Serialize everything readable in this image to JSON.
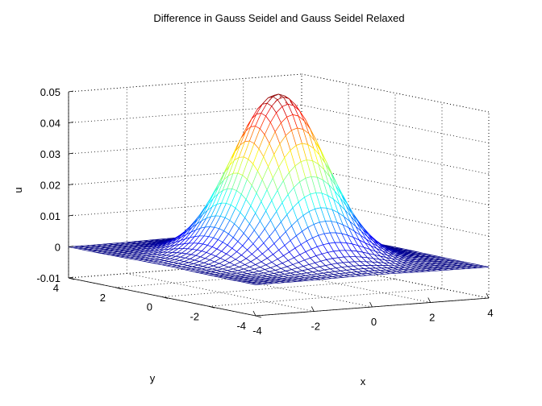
{
  "chart_data": {
    "type": "surface",
    "title": "Difference in Gauss Seidel and Gauss Seidel Relaxed",
    "xlabel": "x",
    "ylabel": "y",
    "zlabel": "u",
    "xlim": [
      -4,
      4
    ],
    "ylim": [
      -4,
      4
    ],
    "zlim": [
      -0.01,
      0.05
    ],
    "x_ticks": [
      "-4",
      "-2",
      "0",
      "2",
      "4"
    ],
    "y_ticks": [
      "-4",
      "-2",
      "0",
      "2",
      "4"
    ],
    "z_ticks": [
      "-0.01",
      "0",
      "0.01",
      "0.02",
      "0.03",
      "0.04",
      "0.05"
    ],
    "grid": true,
    "colormap": "jet",
    "surface": {
      "function": "gaussian",
      "peak": 0.0525,
      "center": [
        0,
        0
      ],
      "sigma": 1.25,
      "x_range": [
        -4,
        4
      ],
      "y_range": [
        -4,
        4
      ],
      "grid_points": 41
    }
  }
}
